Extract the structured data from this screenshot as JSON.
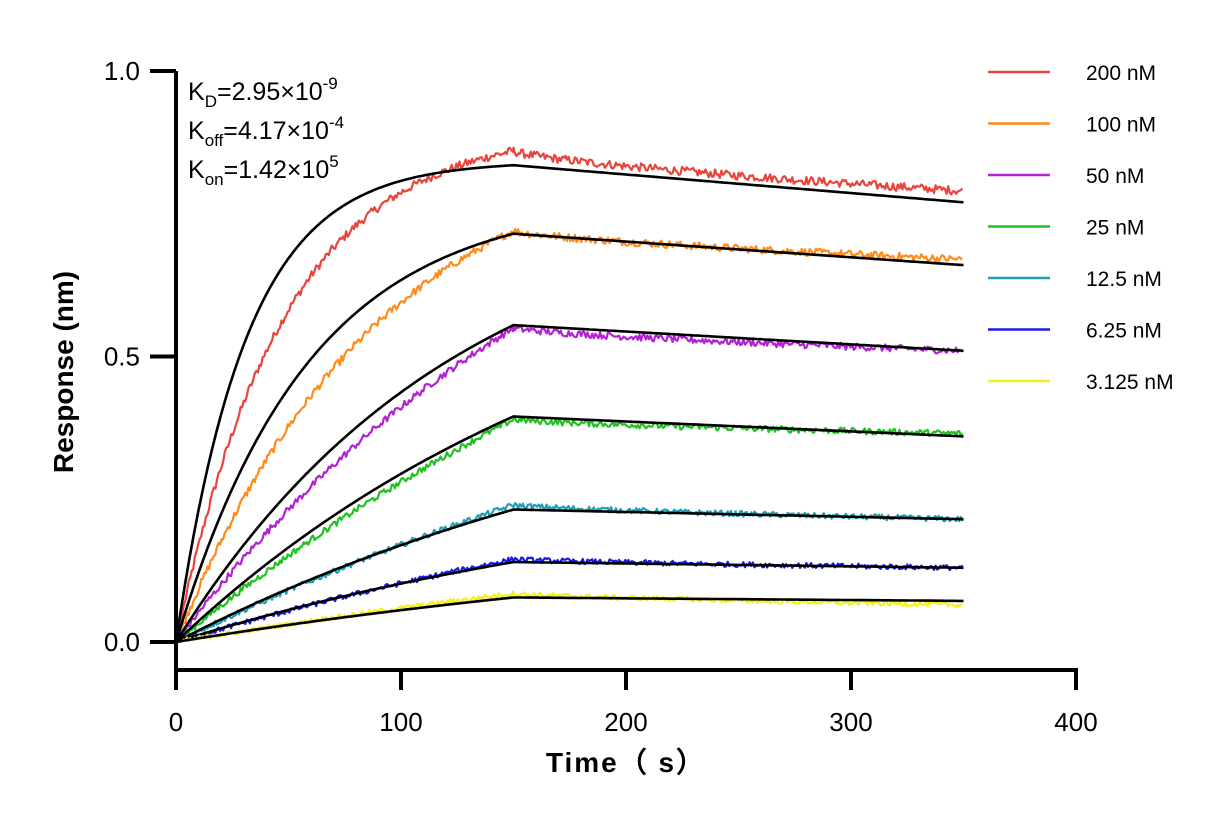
{
  "chart_data": {
    "type": "line",
    "title": "",
    "xlabel": "Time（ s）",
    "ylabel": "Response (nm)",
    "xlim": [
      0,
      400
    ],
    "ylim": [
      0,
      1.0
    ],
    "xticks": [
      "0",
      "100",
      "200",
      "300",
      "400"
    ],
    "yticks": [
      "0.0",
      "0.5",
      "1.0"
    ],
    "grid": false,
    "legend_position": "right",
    "association_end": 150,
    "time_end": 350,
    "annotations": [
      {
        "base": "K",
        "sub": "D",
        "value": "=2.95×10",
        "sup": "-9"
      },
      {
        "base": "K",
        "sub": "off",
        "value": "=4.17×10",
        "sup": "-4"
      },
      {
        "base": "K",
        "sub": "on",
        "value": "=1.42×10",
        "sup": "5"
      }
    ],
    "series": [
      {
        "name": "200 nM",
        "color": "#e8453c",
        "measured_peak": 0.86,
        "measured_end": 0.79,
        "fit_peak": 0.835,
        "fit_end": 0.77,
        "fit_rate": 0.032
      },
      {
        "name": "100 nM",
        "color": "#ff8c1a",
        "measured_peak": 0.72,
        "measured_end": 0.67,
        "fit_peak": 0.715,
        "fit_end": 0.66,
        "fit_rate": 0.017
      },
      {
        "name": "50 nM",
        "color": "#b222d4",
        "measured_peak": 0.55,
        "measured_end": 0.51,
        "fit_peak": 0.555,
        "fit_end": 0.51,
        "fit_rate": 0.008
      },
      {
        "name": "25 nM",
        "color": "#1fc21f",
        "measured_peak": 0.39,
        "measured_end": 0.365,
        "fit_peak": 0.395,
        "fit_end": 0.36,
        "fit_rate": 0.005
      },
      {
        "name": "12.5 nM",
        "color": "#1fa0b4",
        "measured_peak": 0.24,
        "measured_end": 0.215,
        "fit_peak": 0.232,
        "fit_end": 0.215,
        "fit_rate": 0.004
      },
      {
        "name": "6.25 nM",
        "color": "#1a1ae6",
        "measured_peak": 0.145,
        "measured_end": 0.13,
        "fit_peak": 0.14,
        "fit_end": 0.13,
        "fit_rate": 0.004
      },
      {
        "name": "3.125 nM",
        "color": "#f5f020",
        "measured_peak": 0.085,
        "measured_end": 0.065,
        "fit_peak": 0.078,
        "fit_end": 0.072,
        "fit_rate": 0.003
      }
    ]
  }
}
